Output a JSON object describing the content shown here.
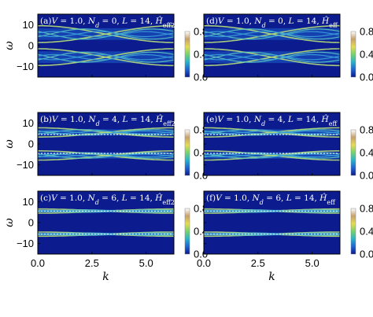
{
  "chart_data": {
    "type": "heatmap",
    "xlabel": "k",
    "ylabel": "ω",
    "x_ticks": [
      "0.0",
      "2.5",
      "5.0"
    ],
    "y_ticks": [
      "10",
      "0",
      "−10"
    ],
    "colorbar_ticks": [
      "0.8",
      "0.4",
      "0.0"
    ],
    "colorbar_range": [
      0,
      0.8
    ],
    "xlim": [
      0,
      6.283
    ],
    "ylim": [
      -15,
      15
    ],
    "colormap": [
      "#0a1a8c",
      "#1e64d2",
      "#28b4c8",
      "#78d26e",
      "#e6dc50",
      "#c8a06e",
      "#ffffff"
    ],
    "panels": [
      {
        "label": "(a)",
        "V": "1.0",
        "Nd": "0",
        "L": "14",
        "H": "eff2",
        "band_spread": 4.0,
        "dashed": []
      },
      {
        "label": "(b)",
        "V": "1.0",
        "Nd": "4",
        "L": "14",
        "H": "eff2",
        "band_spread": 2.2,
        "dashed": [
          4.5,
          -4.5
        ]
      },
      {
        "label": "(c)",
        "V": "1.0",
        "Nd": "6",
        "L": "14",
        "H": "eff2",
        "band_spread": 1.0,
        "dashed": [
          5.5,
          -5.5
        ]
      },
      {
        "label": "(d)",
        "V": "1.0",
        "Nd": "0",
        "L": "14",
        "H": "eff",
        "band_spread": 4.0,
        "dashed": []
      },
      {
        "label": "(e)",
        "V": "1.0",
        "Nd": "4",
        "L": "14",
        "H": "eff",
        "band_spread": 2.2,
        "dashed": [
          4.5,
          -4.5
        ]
      },
      {
        "label": "(f)",
        "V": "1.0",
        "Nd": "6",
        "L": "14",
        "H": "eff",
        "band_spread": 1.0,
        "dashed": [
          5.5,
          -5.5
        ]
      }
    ]
  }
}
